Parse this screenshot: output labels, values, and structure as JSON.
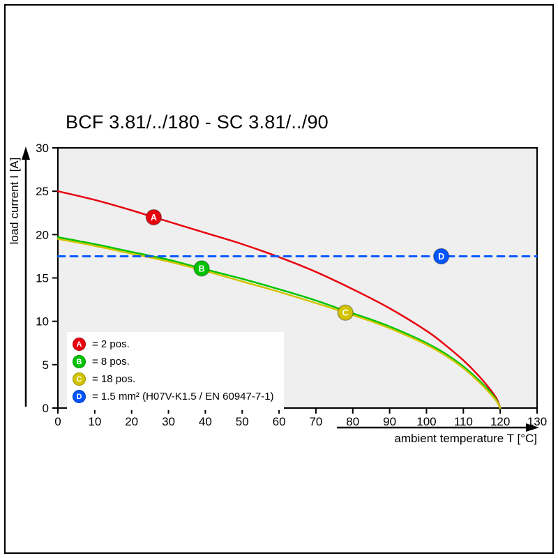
{
  "chart_data": {
    "type": "line",
    "title": "BCF 3.81/../180 - SC 3.81/../90",
    "xlabel": "ambient temperature T [°C]",
    "ylabel": "load current I [A]",
    "xlim": [
      0,
      130
    ],
    "ylim": [
      0,
      30
    ],
    "xticks": [
      0,
      10,
      20,
      30,
      40,
      50,
      60,
      70,
      80,
      90,
      100,
      110,
      120,
      130
    ],
    "yticks": [
      0,
      5,
      10,
      15,
      20,
      25,
      30
    ],
    "grid": false,
    "plot_bg": "#efefef",
    "axis_color": "#000000",
    "series": [
      {
        "name": "A",
        "label": "= 2 pos.",
        "color": "#e8000e",
        "style": "solid",
        "marker_at": [
          26,
          22
        ],
        "points": [
          [
            0,
            25
          ],
          [
            10,
            24.0
          ],
          [
            20,
            22.8
          ],
          [
            26,
            22.0
          ],
          [
            30,
            21.5
          ],
          [
            40,
            20.2
          ],
          [
            50,
            18.9
          ],
          [
            60,
            17.4
          ],
          [
            70,
            15.7
          ],
          [
            80,
            13.7
          ],
          [
            90,
            11.5
          ],
          [
            100,
            8.9
          ],
          [
            105,
            7.3
          ],
          [
            110,
            5.5
          ],
          [
            114,
            3.8
          ],
          [
            117,
            2.3
          ],
          [
            119,
            1.1
          ],
          [
            120,
            0
          ]
        ]
      },
      {
        "name": "B",
        "label": "= 8 pos.",
        "color": "#00c300",
        "style": "solid",
        "marker_at": [
          39,
          16.1
        ],
        "points": [
          [
            0,
            19.7
          ],
          [
            10,
            18.9
          ],
          [
            20,
            18.0
          ],
          [
            30,
            17.1
          ],
          [
            39,
            16.1
          ],
          [
            50,
            14.9
          ],
          [
            60,
            13.7
          ],
          [
            70,
            12.4
          ],
          [
            78,
            11.2
          ],
          [
            85,
            10.2
          ],
          [
            90,
            9.4
          ],
          [
            95,
            8.5
          ],
          [
            100,
            7.5
          ],
          [
            105,
            6.3
          ],
          [
            110,
            4.8
          ],
          [
            114,
            3.3
          ],
          [
            117,
            2.0
          ],
          [
            119,
            0.9
          ],
          [
            120,
            0
          ]
        ]
      },
      {
        "name": "C",
        "label": "= 18 pos.",
        "color": "#d2c400",
        "style": "solid",
        "marker_at": [
          78,
          11.0
        ],
        "points": [
          [
            0,
            19.5
          ],
          [
            10,
            18.7
          ],
          [
            20,
            17.8
          ],
          [
            30,
            16.9
          ],
          [
            40,
            15.8
          ],
          [
            50,
            14.6
          ],
          [
            60,
            13.4
          ],
          [
            70,
            12.1
          ],
          [
            78,
            11.0
          ],
          [
            85,
            10.0
          ],
          [
            90,
            9.2
          ],
          [
            95,
            8.3
          ],
          [
            100,
            7.3
          ],
          [
            105,
            6.1
          ],
          [
            110,
            4.6
          ],
          [
            114,
            3.1
          ],
          [
            117,
            1.8
          ],
          [
            119,
            0.8
          ],
          [
            120,
            0
          ]
        ]
      },
      {
        "name": "D",
        "label": "= 1.5 mm² (H07V-K1.5 / EN 60947-7-1)",
        "color": "#0055ff",
        "style": "dashed",
        "marker_at": [
          104,
          17.5
        ],
        "points": [
          [
            0,
            17.5
          ],
          [
            130,
            17.5
          ]
        ]
      }
    ]
  }
}
